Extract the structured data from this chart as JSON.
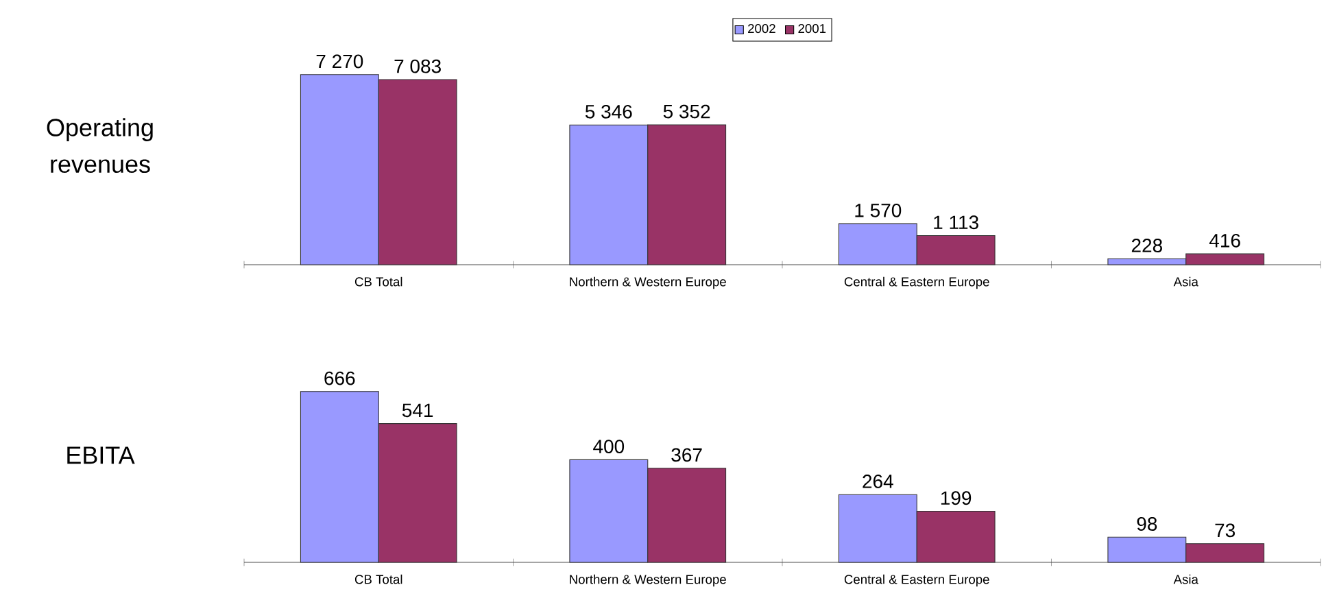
{
  "chart_data": [
    {
      "type": "bar",
      "ylabel": "Operating revenues",
      "categories": [
        "CB Total",
        "Northern & Western Europe",
        "Central & Eastern Europe",
        "Asia"
      ],
      "tick_labels": "x",
      "legend": "top",
      "series": [
        {
          "name": "2002",
          "color": "#9999ff",
          "values": [
            7270,
            5346,
            1570,
            228
          ],
          "value_labels": [
            "7 270",
            "5 346",
            "1 570",
            "228"
          ]
        },
        {
          "name": "2001",
          "color": "#993366",
          "values": [
            7083,
            5352,
            1113,
            416
          ],
          "value_labels": [
            "7 083",
            "5 352",
            "1 113",
            "416"
          ]
        }
      ]
    },
    {
      "type": "bar",
      "ylabel": "EBITA",
      "categories": [
        "CB Total",
        "Northern & Western Europe",
        "Central & Eastern Europe",
        "Asia"
      ],
      "tick_labels": "x",
      "legend": false,
      "series": [
        {
          "color": "#9999ff",
          "values": [
            666,
            400,
            264,
            98
          ],
          "value_labels": [
            "666",
            "400",
            "264",
            "98"
          ]
        },
        {
          "color": "#993366",
          "values": [
            541,
            367,
            199,
            73
          ],
          "value_labels": [
            "541",
            "367",
            "199",
            "73"
          ]
        }
      ]
    }
  ]
}
